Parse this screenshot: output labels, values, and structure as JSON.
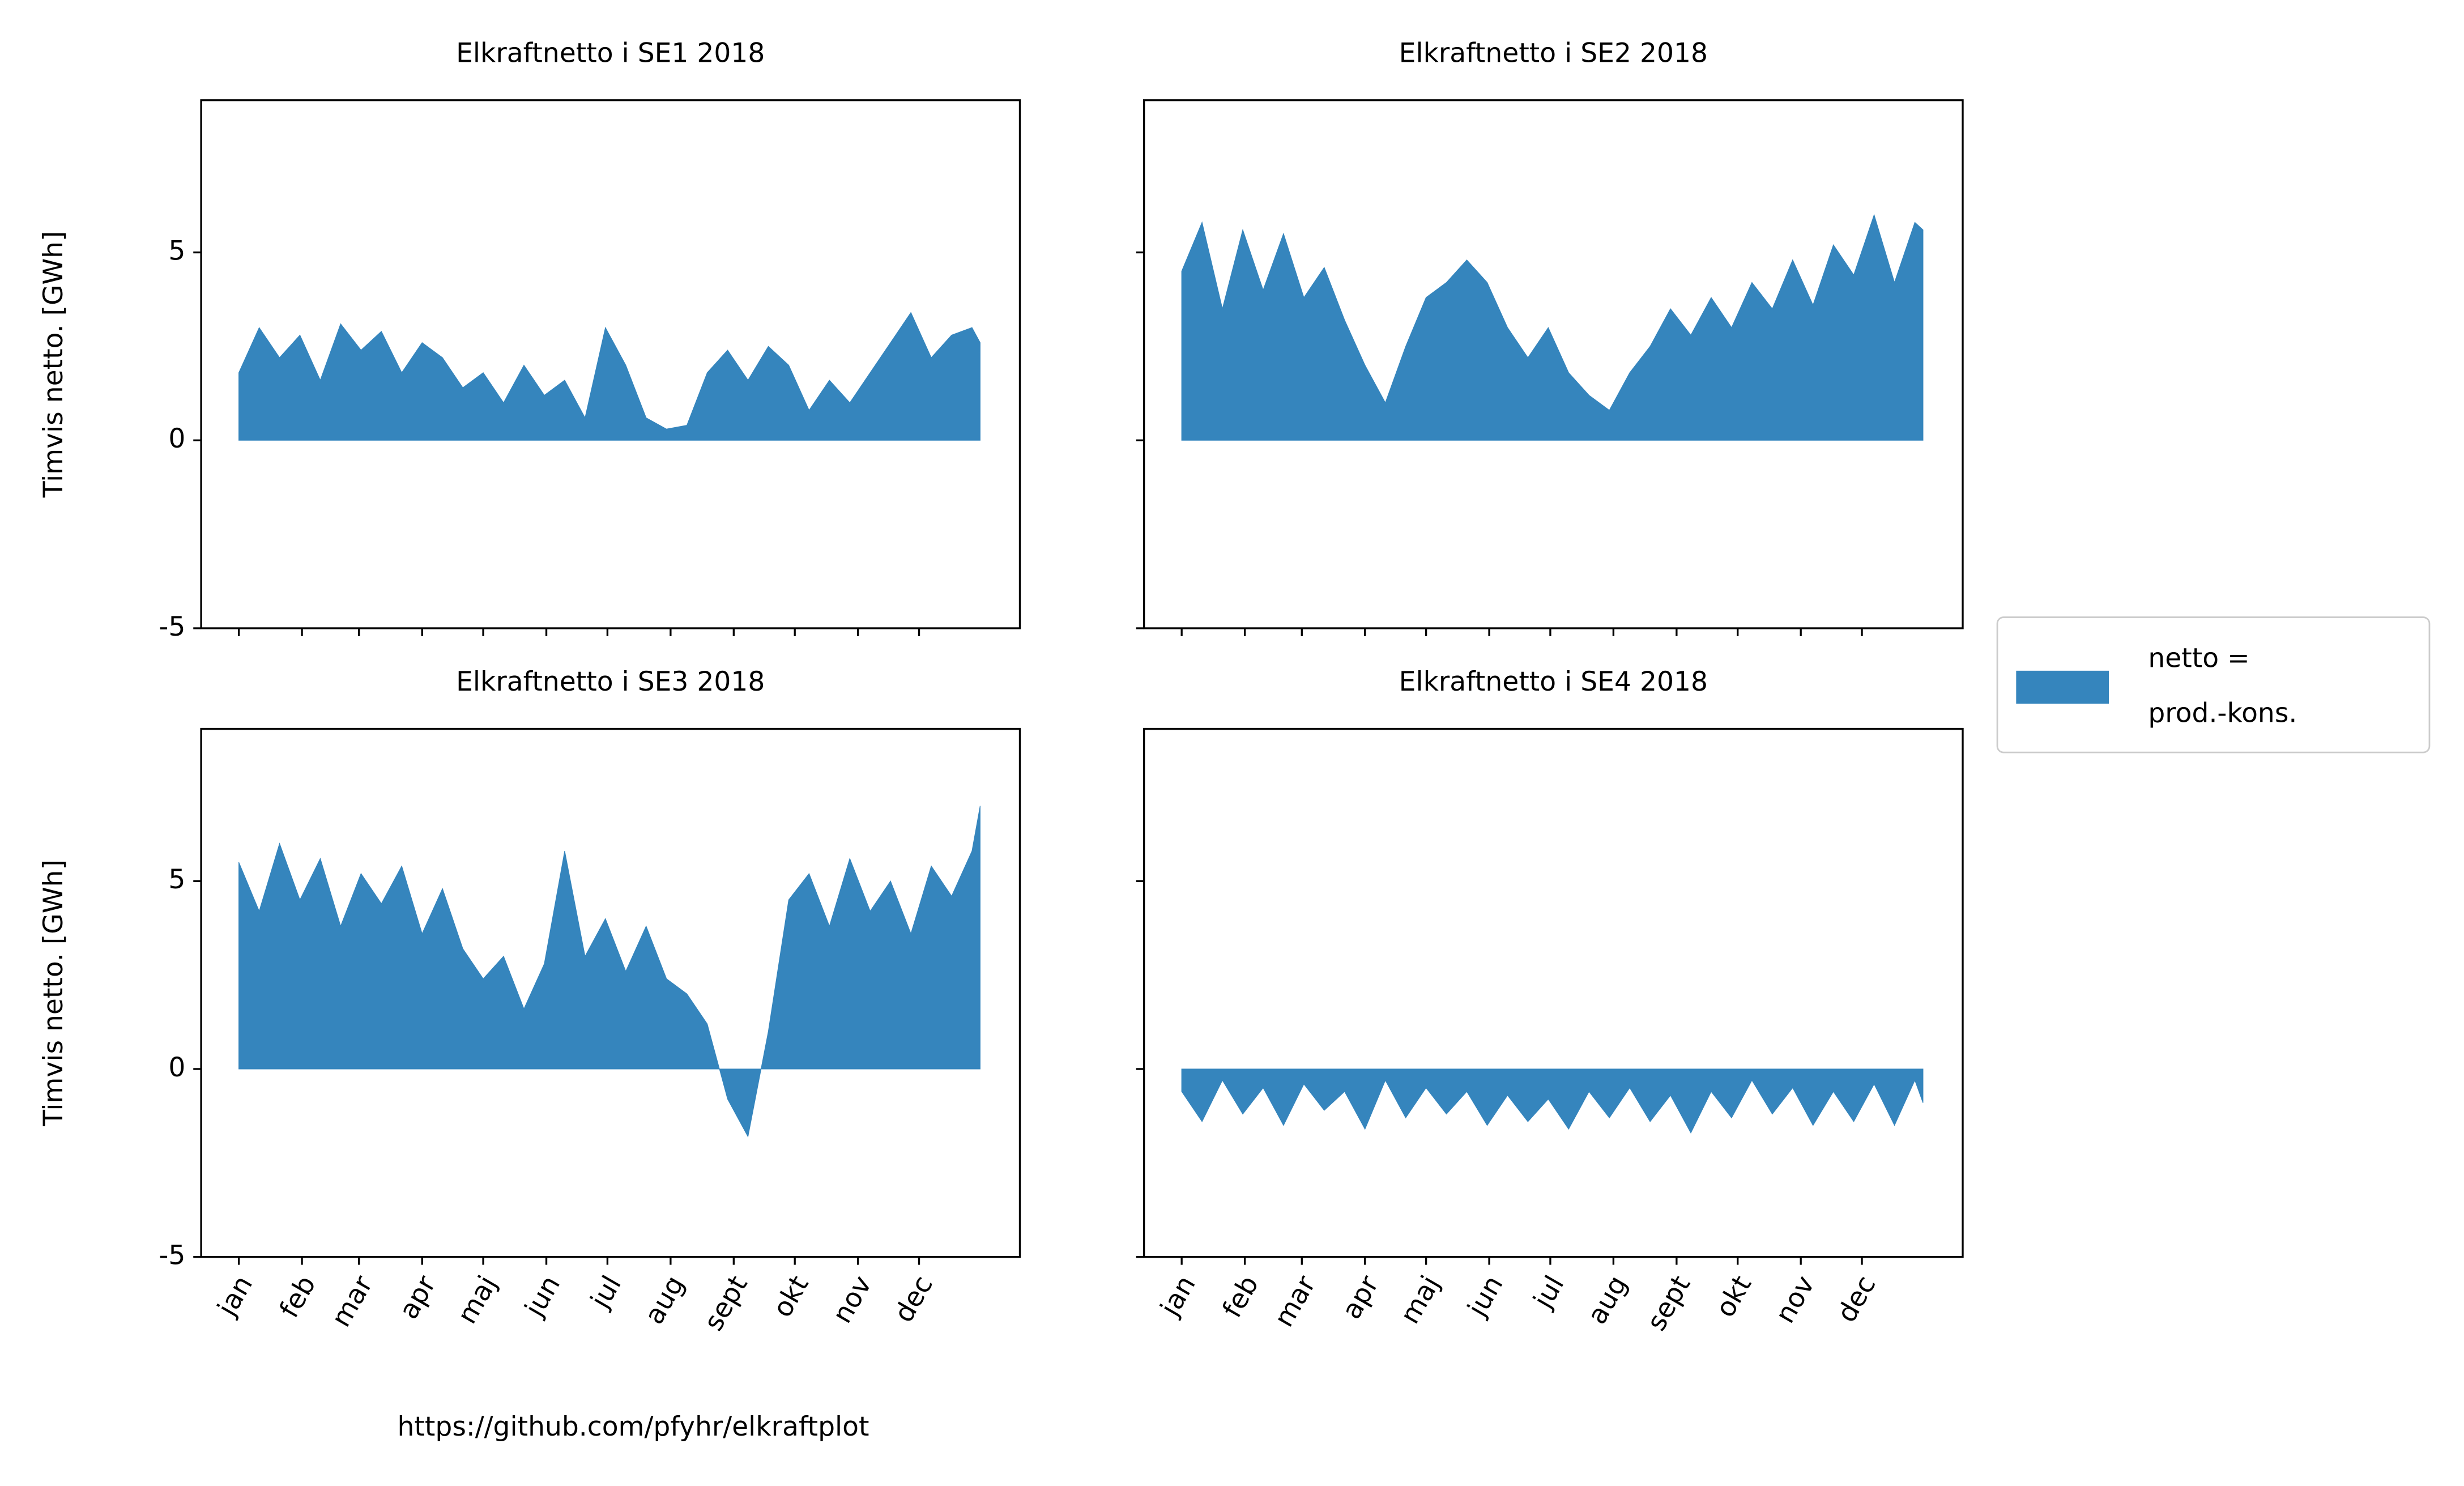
{
  "chart_data": [
    {
      "type": "area",
      "title": "Elkraftnetto i SE1 2018",
      "y_label": "Timvis netto. [GWh]",
      "color": "#3585bd",
      "x": [
        0,
        10,
        20,
        30,
        40,
        50,
        60,
        70,
        80,
        90,
        100,
        110,
        120,
        130,
        140,
        150,
        160,
        170,
        180,
        190,
        200,
        210,
        220,
        230,
        240,
        250,
        260,
        270,
        280,
        290,
        300,
        310,
        320,
        330,
        340,
        350,
        360,
        364
      ],
      "values": [
        1.8,
        3.0,
        2.2,
        2.8,
        1.6,
        3.1,
        2.4,
        2.9,
        1.8,
        2.6,
        2.2,
        1.4,
        1.8,
        1.0,
        2.0,
        1.2,
        1.6,
        0.6,
        3.0,
        2.0,
        0.6,
        0.3,
        0.4,
        1.8,
        2.4,
        1.6,
        2.5,
        2.0,
        0.8,
        1.6,
        1.0,
        1.8,
        2.6,
        3.4,
        2.2,
        2.8,
        3.0,
        2.6
      ],
      "xlim": [
        -18.5,
        383.5
      ],
      "ylim": [
        -5,
        9.05
      ],
      "xticks": [
        0,
        31,
        59,
        90,
        120,
        151,
        181,
        212,
        243,
        273,
        304,
        334
      ],
      "yticks": [
        -5,
        0,
        5
      ]
    },
    {
      "type": "area",
      "title": "Elkraftnetto i SE2 2018",
      "color": "#3585bd",
      "x": [
        0,
        10,
        20,
        30,
        40,
        50,
        60,
        70,
        80,
        90,
        100,
        110,
        120,
        130,
        140,
        150,
        160,
        170,
        180,
        190,
        200,
        210,
        220,
        230,
        240,
        250,
        260,
        270,
        280,
        290,
        300,
        310,
        320,
        330,
        340,
        350,
        360,
        364
      ],
      "values": [
        4.5,
        5.8,
        3.5,
        5.6,
        4.0,
        5.5,
        3.8,
        4.6,
        3.2,
        2.0,
        1.0,
        2.5,
        3.8,
        4.2,
        4.8,
        4.2,
        3.0,
        2.2,
        3.0,
        1.8,
        1.2,
        0.8,
        1.8,
        2.5,
        3.5,
        2.8,
        3.8,
        3.0,
        4.2,
        3.5,
        4.8,
        3.6,
        5.2,
        4.4,
        6.0,
        4.2,
        5.8,
        5.6
      ],
      "xlim": [
        -18.5,
        383.5
      ],
      "ylim": [
        -5,
        9.05
      ],
      "xticks": [
        0,
        31,
        59,
        90,
        120,
        151,
        181,
        212,
        243,
        273,
        304,
        334
      ],
      "yticks": [
        -5,
        0,
        5
      ]
    },
    {
      "type": "area",
      "title": "Elkraftnetto i SE3 2018",
      "y_label": "Timvis netto. [GWh]",
      "color": "#3585bd",
      "x": [
        0,
        10,
        20,
        30,
        40,
        50,
        60,
        70,
        80,
        90,
        100,
        110,
        120,
        130,
        140,
        150,
        160,
        170,
        180,
        190,
        200,
        210,
        220,
        230,
        240,
        250,
        260,
        270,
        280,
        290,
        300,
        310,
        320,
        330,
        340,
        350,
        360,
        364
      ],
      "values": [
        5.5,
        4.2,
        6.0,
        4.5,
        5.6,
        3.8,
        5.2,
        4.4,
        5.4,
        3.6,
        4.8,
        3.2,
        2.4,
        3.0,
        1.6,
        2.8,
        5.8,
        3.0,
        4.0,
        2.6,
        3.8,
        2.4,
        2.0,
        1.2,
        -0.8,
        -1.8,
        1.0,
        4.5,
        5.2,
        3.8,
        5.6,
        4.2,
        5.0,
        3.6,
        5.4,
        4.6,
        5.8,
        7.0
      ],
      "xlim": [
        -18.5,
        383.5
      ],
      "ylim": [
        -5,
        9.05
      ],
      "xticks": [
        {
          "value": 0,
          "label": "jan"
        },
        {
          "value": 31,
          "label": "feb"
        },
        {
          "value": 59,
          "label": "mar"
        },
        {
          "value": 90,
          "label": "apr"
        },
        {
          "value": 120,
          "label": "maj"
        },
        {
          "value": 151,
          "label": "jun"
        },
        {
          "value": 181,
          "label": "jul"
        },
        {
          "value": 212,
          "label": "aug"
        },
        {
          "value": 243,
          "label": "sept"
        },
        {
          "value": 273,
          "label": "okt"
        },
        {
          "value": 304,
          "label": "nov"
        },
        {
          "value": 334,
          "label": "dec"
        }
      ],
      "yticks": [
        -5,
        0,
        5
      ]
    },
    {
      "type": "area",
      "title": "Elkraftnetto i SE4 2018",
      "color": "#3585bd",
      "x": [
        0,
        10,
        20,
        30,
        40,
        50,
        60,
        70,
        80,
        90,
        100,
        110,
        120,
        130,
        140,
        150,
        160,
        170,
        180,
        190,
        200,
        210,
        220,
        230,
        240,
        250,
        260,
        270,
        280,
        290,
        300,
        310,
        320,
        330,
        340,
        350,
        360,
        364
      ],
      "values": [
        -0.6,
        -1.4,
        -0.3,
        -1.2,
        -0.5,
        -1.5,
        -0.4,
        -1.1,
        -0.6,
        -1.6,
        -0.3,
        -1.3,
        -0.5,
        -1.2,
        -0.6,
        -1.5,
        -0.7,
        -1.4,
        -0.8,
        -1.6,
        -0.6,
        -1.3,
        -0.5,
        -1.4,
        -0.7,
        -1.7,
        -0.6,
        -1.3,
        -0.3,
        -1.2,
        -0.5,
        -1.5,
        -0.6,
        -1.4,
        -0.4,
        -1.5,
        -0.3,
        -0.9
      ],
      "xlim": [
        -18.5,
        383.5
      ],
      "ylim": [
        -5,
        9.05
      ],
      "xticks": [
        {
          "value": 0,
          "label": "jan"
        },
        {
          "value": 31,
          "label": "feb"
        },
        {
          "value": 59,
          "label": "mar"
        },
        {
          "value": 90,
          "label": "apr"
        },
        {
          "value": 120,
          "label": "maj"
        },
        {
          "value": 151,
          "label": "jun"
        },
        {
          "value": 181,
          "label": "jul"
        },
        {
          "value": 212,
          "label": "aug"
        },
        {
          "value": 243,
          "label": "sept"
        },
        {
          "value": 273,
          "label": "okt"
        },
        {
          "value": 304,
          "label": "nov"
        },
        {
          "value": 334,
          "label": "dec"
        }
      ],
      "yticks": [
        -5,
        0,
        5
      ]
    }
  ],
  "legend": {
    "label": [
      "netto =",
      "prod.-kons."
    ],
    "color": "#3585bd",
    "position": "right"
  },
  "source": "https://github.com/pfyhr/elkraftplot"
}
